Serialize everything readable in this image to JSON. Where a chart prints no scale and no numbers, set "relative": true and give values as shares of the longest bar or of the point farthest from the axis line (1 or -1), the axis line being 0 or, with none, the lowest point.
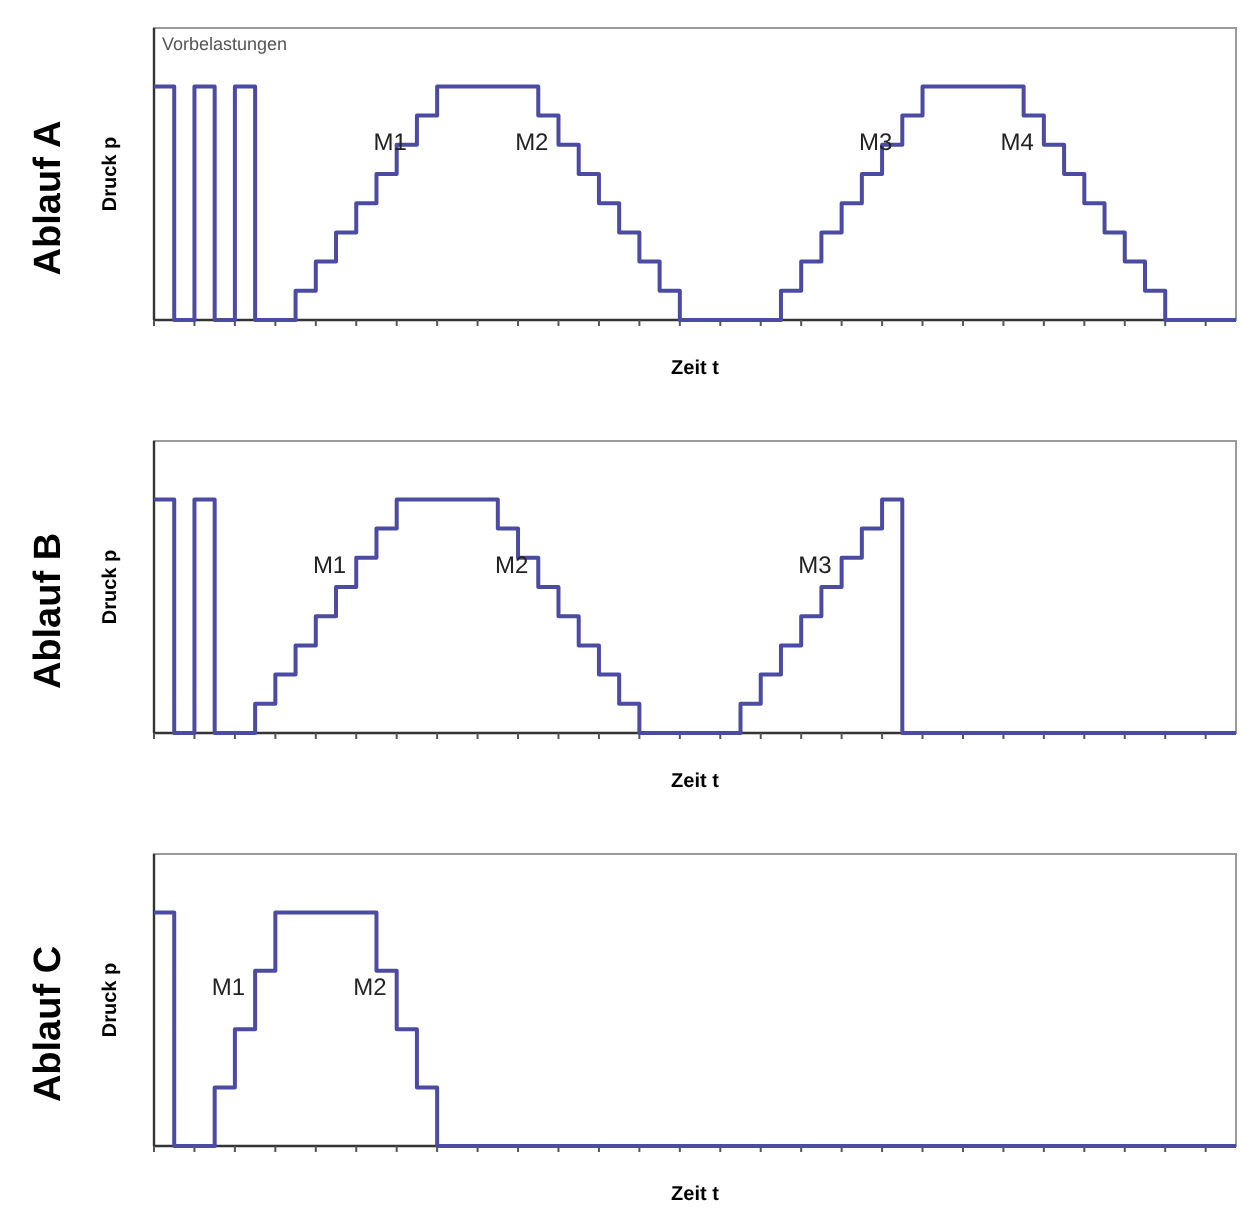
{
  "chart_data": [
    {
      "type": "step",
      "title": "Ablauf A",
      "ylabel": "Druck p",
      "xlabel": "Zeit t",
      "relative": true,
      "categories": [
        null,
        null,
        null,
        null,
        null,
        null,
        null,
        null,
        null,
        null,
        null,
        null,
        null,
        null,
        null,
        null,
        null,
        null,
        null,
        null,
        null,
        null,
        null,
        null,
        null,
        null,
        null,
        null,
        null,
        null,
        null,
        null,
        null,
        null,
        null,
        null,
        null,
        null,
        null,
        null,
        null,
        null,
        null,
        null,
        null,
        null,
        null,
        null,
        null,
        null,
        null,
        null,
        null,
        null,
        null,
        null,
        null,
        null,
        null,
        null,
        null,
        null,
        null,
        null,
        null,
        null,
        null,
        null,
        null,
        null,
        null,
        null,
        null,
        null,
        null,
        null,
        null,
        null,
        null,
        null,
        null,
        null,
        null,
        null,
        null,
        null,
        null,
        null,
        null,
        null,
        null,
        null,
        null,
        null,
        null,
        null,
        null,
        null,
        null,
        null,
        null,
        null,
        null,
        null,
        null,
        null,
        null,
        null
      ],
      "series": [
        {
          "color": "#4b4ba3",
          "values": [
            1,
            1,
            0,
            0,
            1,
            1,
            0,
            0,
            1,
            1,
            0,
            0,
            0,
            0,
            0.125,
            0.125,
            0.25,
            0.25,
            0.375,
            0.375,
            0.5,
            0.5,
            0.625,
            0.625,
            0.75,
            0.75,
            0.875,
            0.875,
            1,
            1,
            1,
            1,
            1,
            1,
            1,
            1,
            1,
            1,
            0.875,
            0.875,
            0.75,
            0.75,
            0.625,
            0.625,
            0.5,
            0.5,
            0.375,
            0.375,
            0.25,
            0.25,
            0.125,
            0.125,
            0,
            0,
            0,
            0,
            0,
            0,
            0,
            0,
            0,
            0,
            0.125,
            0.125,
            0.25,
            0.25,
            0.375,
            0.375,
            0.5,
            0.5,
            0.625,
            0.625,
            0.75,
            0.75,
            0.875,
            0.875,
            1,
            1,
            1,
            1,
            1,
            1,
            1,
            1,
            1,
            1,
            0.875,
            0.875,
            0.75,
            0.75,
            0.625,
            0.625,
            0.5,
            0.5,
            0.375,
            0.375,
            0.25,
            0.25,
            0.125,
            0.125,
            0,
            0,
            0,
            0,
            0,
            0,
            0,
            0
          ]
        }
      ],
      "annotations": [
        "Vorbelastungen",
        "M1",
        "M2",
        "M3",
        "M4"
      ]
    },
    {
      "type": "step",
      "title": "Ablauf B",
      "ylabel": "Druck p",
      "xlabel": "Zeit t",
      "relative": true,
      "categories": [
        null,
        null,
        null,
        null,
        null,
        null,
        null,
        null,
        null,
        null,
        null,
        null,
        null,
        null,
        null,
        null,
        null,
        null,
        null,
        null,
        null,
        null,
        null,
        null,
        null,
        null,
        null,
        null,
        null,
        null,
        null,
        null,
        null,
        null,
        null,
        null,
        null,
        null,
        null,
        null,
        null,
        null,
        null,
        null,
        null,
        null,
        null,
        null,
        null,
        null,
        null,
        null,
        null,
        null,
        null,
        null,
        null,
        null,
        null,
        null,
        null,
        null,
        null,
        null,
        null,
        null,
        null,
        null,
        null,
        null,
        null,
        null,
        null,
        null,
        null,
        null,
        null,
        null,
        null,
        null,
        null,
        null,
        null,
        null,
        null,
        null,
        null,
        null,
        null,
        null,
        null,
        null,
        null,
        null,
        null,
        null,
        null,
        null,
        null,
        null,
        null,
        null,
        null,
        null,
        null,
        null,
        null,
        null
      ],
      "series": [
        {
          "color": "#4b4ba3",
          "values": [
            1,
            1,
            0,
            0,
            1,
            1,
            0,
            0,
            0,
            0,
            0.125,
            0.125,
            0.25,
            0.25,
            0.375,
            0.375,
            0.5,
            0.5,
            0.625,
            0.625,
            0.75,
            0.75,
            0.875,
            0.875,
            1,
            1,
            1,
            1,
            1,
            1,
            1,
            1,
            1,
            1,
            0.875,
            0.875,
            0.75,
            0.75,
            0.625,
            0.625,
            0.5,
            0.5,
            0.375,
            0.375,
            0.25,
            0.25,
            0.125,
            0.125,
            0,
            0,
            0,
            0,
            0,
            0,
            0,
            0,
            0,
            0,
            0.125,
            0.125,
            0.25,
            0.25,
            0.375,
            0.375,
            0.5,
            0.5,
            0.625,
            0.625,
            0.75,
            0.75,
            0.875,
            0.875,
            1,
            1,
            0,
            0,
            0,
            0,
            0,
            0,
            0,
            0,
            0,
            0,
            0,
            0,
            0,
            0,
            0,
            0,
            0,
            0,
            0,
            0,
            0,
            0,
            0,
            0,
            0,
            0,
            0,
            0,
            0,
            0,
            0,
            0,
            0,
            0
          ]
        }
      ],
      "annotations": [
        "M1",
        "M2",
        "M3"
      ]
    },
    {
      "type": "step",
      "title": "Ablauf C",
      "ylabel": "Druck p",
      "xlabel": "Zeit t",
      "relative": true,
      "categories": [
        null,
        null,
        null,
        null,
        null,
        null,
        null,
        null,
        null,
        null,
        null,
        null,
        null,
        null,
        null,
        null,
        null,
        null,
        null,
        null,
        null,
        null,
        null,
        null,
        null,
        null,
        null,
        null,
        null,
        null,
        null,
        null,
        null,
        null,
        null,
        null,
        null,
        null,
        null,
        null,
        null,
        null,
        null,
        null,
        null,
        null,
        null,
        null,
        null,
        null,
        null,
        null,
        null,
        null,
        null,
        null,
        null,
        null,
        null,
        null,
        null,
        null,
        null,
        null,
        null,
        null,
        null,
        null,
        null,
        null,
        null,
        null,
        null,
        null,
        null,
        null,
        null,
        null,
        null,
        null,
        null,
        null,
        null,
        null,
        null,
        null,
        null,
        null,
        null,
        null,
        null,
        null,
        null,
        null,
        null,
        null,
        null,
        null,
        null,
        null,
        null,
        null,
        null,
        null,
        null,
        null,
        null,
        null
      ],
      "series": [
        {
          "color": "#4b4ba3",
          "values": [
            1,
            1,
            0,
            0,
            0,
            0,
            0.25,
            0.25,
            0.5,
            0.5,
            0.75,
            0.75,
            1,
            1,
            1,
            1,
            1,
            1,
            1,
            1,
            1,
            1,
            0.75,
            0.75,
            0.5,
            0.5,
            0.25,
            0.25,
            0,
            0,
            0,
            0,
            0,
            0,
            0,
            0,
            0,
            0,
            0,
            0,
            0,
            0,
            0,
            0,
            0,
            0,
            0,
            0,
            0,
            0,
            0,
            0,
            0,
            0,
            0,
            0,
            0,
            0,
            0,
            0,
            0,
            0,
            0,
            0,
            0,
            0,
            0,
            0,
            0,
            0,
            0,
            0,
            0,
            0,
            0,
            0,
            0,
            0,
            0,
            0,
            0,
            0,
            0,
            0,
            0,
            0,
            0,
            0,
            0,
            0,
            0,
            0,
            0,
            0,
            0,
            0,
            0,
            0,
            0,
            0,
            0,
            0,
            0,
            0,
            0,
            0,
            0,
            0
          ]
        }
      ],
      "annotations": [
        "M1",
        "M2"
      ]
    }
  ]
}
